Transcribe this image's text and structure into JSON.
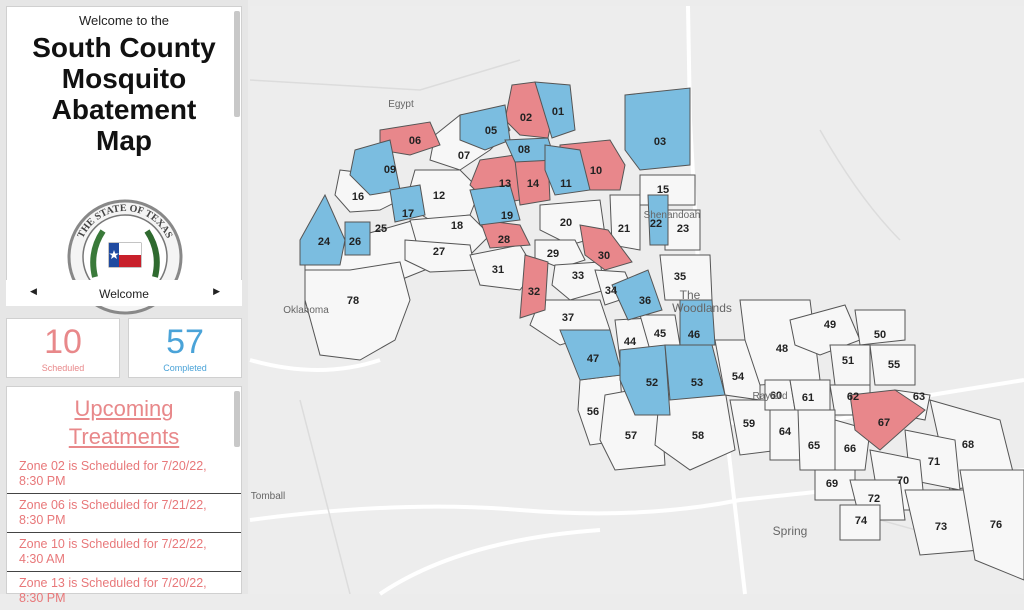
{
  "welcome": {
    "small": "Welcome to the",
    "title_lines": [
      "South County",
      "Mosquito",
      "Abatement",
      "Map"
    ],
    "seal_text": "THE STATE OF TEXAS"
  },
  "nav": {
    "label": "Welcome",
    "prev_icon": "caret-left-icon",
    "next_icon": "caret-right-icon"
  },
  "stats": {
    "scheduled": {
      "value": "10",
      "label": "Scheduled",
      "color": "#e8888a"
    },
    "completed": {
      "value": "57",
      "label": "Completed",
      "color": "#4aa3d8"
    }
  },
  "upcoming": {
    "title_lines": [
      "Upcoming",
      "Treatments"
    ],
    "items": [
      "Zone 02 is Scheduled for 7/20/22, 8:30 PM",
      "Zone 06 is Scheduled for 7/21/22, 8:30 PM",
      "Zone 10 is Scheduled for 7/22/22, 4:30 AM",
      "Zone 13 is Scheduled for 7/20/22, 8:30 PM"
    ]
  },
  "map": {
    "colors": {
      "scheduled": "#e8878b",
      "completed": "#7bbde0",
      "default": "#f7f7f7",
      "border": "#555555"
    },
    "places": [
      "Egypt",
      "Oklahoma",
      "Shenandoah",
      "The",
      "Woodlands",
      "Rayford",
      "Spring",
      "Tomball"
    ]
  }
}
